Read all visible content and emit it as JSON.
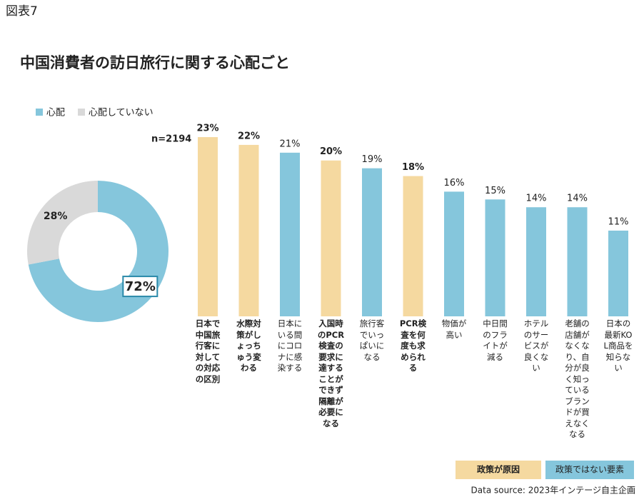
{
  "figure_label": "図表7",
  "title": "中国消費者の訪日旅行に関する心配ごと",
  "source": "Data source: 2023年インテージ自主企画",
  "chart_data": [
    {
      "type": "pie",
      "note": "n=2194",
      "categories": [
        "心配",
        "心配していない"
      ],
      "values": [
        72,
        28
      ],
      "value_labels": [
        "72%",
        "28%"
      ],
      "colors": [
        "#85c6dc",
        "#d9d9d9"
      ],
      "legend": "top-left"
    },
    {
      "type": "bar",
      "categories": [
        "日本で中国旅行客に対しての対応の区別",
        "水際対策がしょっちゅう変わる",
        "日本にいる間にコロナに感染する",
        "入国時のPCR検査の要求に達することができず隔離が必要になる",
        "旅行客でいっぱいになる",
        "PCR検査を何度も求められる",
        "物価が高い",
        "中日間のフライトが減る",
        "ホテルのサービスが良くない",
        "老舗の店舗がなくなり、自分が良く知っているブランドが買えなくなる",
        "日本の最新KOL商品を知らない"
      ],
      "series": [
        {
          "name": "政策が原因",
          "color": "#f5d9a0",
          "values": [
            23,
            22,
            null,
            20,
            null,
            18,
            null,
            null,
            null,
            null,
            null
          ],
          "value_labels": [
            "23%",
            "22%",
            null,
            "20%",
            null,
            "18%",
            null,
            null,
            null,
            null,
            null
          ]
        },
        {
          "name": "政策ではない要素",
          "color": "#85c6dc",
          "values": [
            null,
            null,
            21,
            null,
            19,
            null,
            16,
            15,
            14,
            14,
            11
          ],
          "value_labels": [
            null,
            null,
            "21%",
            null,
            "19%",
            null,
            "16%",
            "15%",
            "14%",
            "14%",
            "11%"
          ]
        }
      ],
      "ylim": [
        0,
        23
      ],
      "legend": "bottom-right"
    }
  ]
}
